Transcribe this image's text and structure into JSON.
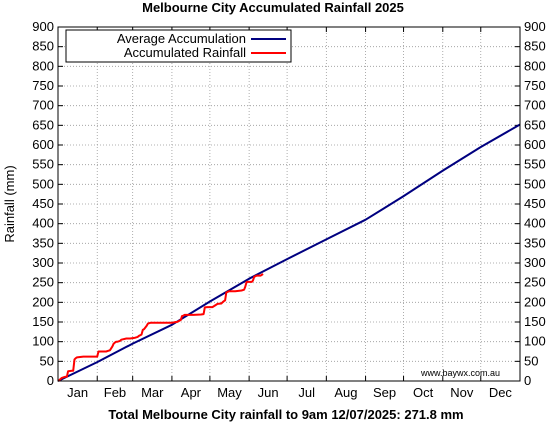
{
  "chart_data": {
    "type": "line",
    "title": "Melbourne City Accumulated Rainfall 2025",
    "ylabel": "Rainfall (mm)",
    "xlabel": "Total Melbourne City rainfall to 9am 12/07/2025: 271.8 mm",
    "watermark": "www.baywx.com.au",
    "ylim": [
      0,
      900
    ],
    "xlim_day": [
      0,
      365
    ],
    "grid": true,
    "legend_position": "top-left",
    "y_ticks": [
      0,
      50,
      100,
      150,
      200,
      250,
      300,
      350,
      400,
      450,
      500,
      550,
      600,
      650,
      700,
      750,
      800,
      850,
      900
    ],
    "months": [
      "Jan",
      "Feb",
      "Mar",
      "Apr",
      "May",
      "Jun",
      "Jul",
      "Aug",
      "Sep",
      "Oct",
      "Nov",
      "Dec"
    ],
    "month_start_days": [
      0,
      31,
      59,
      90,
      120,
      151,
      181,
      212,
      243,
      273,
      304,
      334
    ],
    "series": [
      {
        "name": "Average Accumulation",
        "color": "#000080",
        "points": [
          [
            0,
            0
          ],
          [
            31,
            48
          ],
          [
            59,
            95
          ],
          [
            90,
            143
          ],
          [
            120,
            202
          ],
          [
            151,
            260
          ],
          [
            181,
            310
          ],
          [
            212,
            360
          ],
          [
            243,
            410
          ],
          [
            273,
            470
          ],
          [
            304,
            535
          ],
          [
            334,
            595
          ],
          [
            365,
            652
          ]
        ]
      },
      {
        "name": "Accumulated Rainfall",
        "color": "#ff0000",
        "points": [
          [
            0,
            0
          ],
          [
            1,
            2
          ],
          [
            2,
            5
          ],
          [
            3,
            8
          ],
          [
            5,
            10
          ],
          [
            6,
            11
          ],
          [
            7,
            11
          ],
          [
            8,
            25
          ],
          [
            11,
            26
          ],
          [
            12,
            26
          ],
          [
            13,
            55
          ],
          [
            14,
            58
          ],
          [
            15,
            60
          ],
          [
            20,
            62
          ],
          [
            25,
            62
          ],
          [
            28,
            62
          ],
          [
            30,
            62
          ],
          [
            31,
            62
          ],
          [
            32,
            75
          ],
          [
            36,
            75
          ],
          [
            38,
            75
          ],
          [
            40,
            77
          ],
          [
            41,
            78
          ],
          [
            43,
            88
          ],
          [
            44,
            95
          ],
          [
            45,
            98
          ],
          [
            46,
            100
          ],
          [
            47,
            100
          ],
          [
            49,
            102
          ],
          [
            50,
            105
          ],
          [
            54,
            108
          ],
          [
            57,
            108
          ],
          [
            61,
            110
          ],
          [
            63,
            112
          ],
          [
            64,
            115
          ],
          [
            66,
            118
          ],
          [
            67,
            130
          ],
          [
            68,
            132
          ],
          [
            70,
            140
          ],
          [
            71,
            146
          ],
          [
            73,
            148
          ],
          [
            75,
            148
          ],
          [
            85,
            148
          ],
          [
            90,
            148
          ],
          [
            93,
            150
          ],
          [
            94,
            150
          ],
          [
            97,
            155
          ],
          [
            98,
            165
          ],
          [
            99,
            166
          ],
          [
            100,
            168
          ],
          [
            107,
            168
          ],
          [
            113,
            169
          ],
          [
            115,
            170
          ],
          [
            116,
            187
          ],
          [
            118,
            188
          ],
          [
            122,
            188
          ],
          [
            124,
            192
          ],
          [
            126,
            196
          ],
          [
            129,
            197
          ],
          [
            130,
            200
          ],
          [
            131,
            203
          ],
          [
            132,
            205
          ],
          [
            133,
            225
          ],
          [
            135,
            228
          ],
          [
            140,
            228
          ],
          [
            145,
            230
          ],
          [
            147,
            232
          ],
          [
            148,
            240
          ],
          [
            149,
            252
          ],
          [
            153,
            252
          ],
          [
            154,
            255
          ],
          [
            155,
            265
          ],
          [
            157,
            268
          ],
          [
            160,
            268
          ],
          [
            162,
            272
          ]
        ]
      }
    ]
  }
}
